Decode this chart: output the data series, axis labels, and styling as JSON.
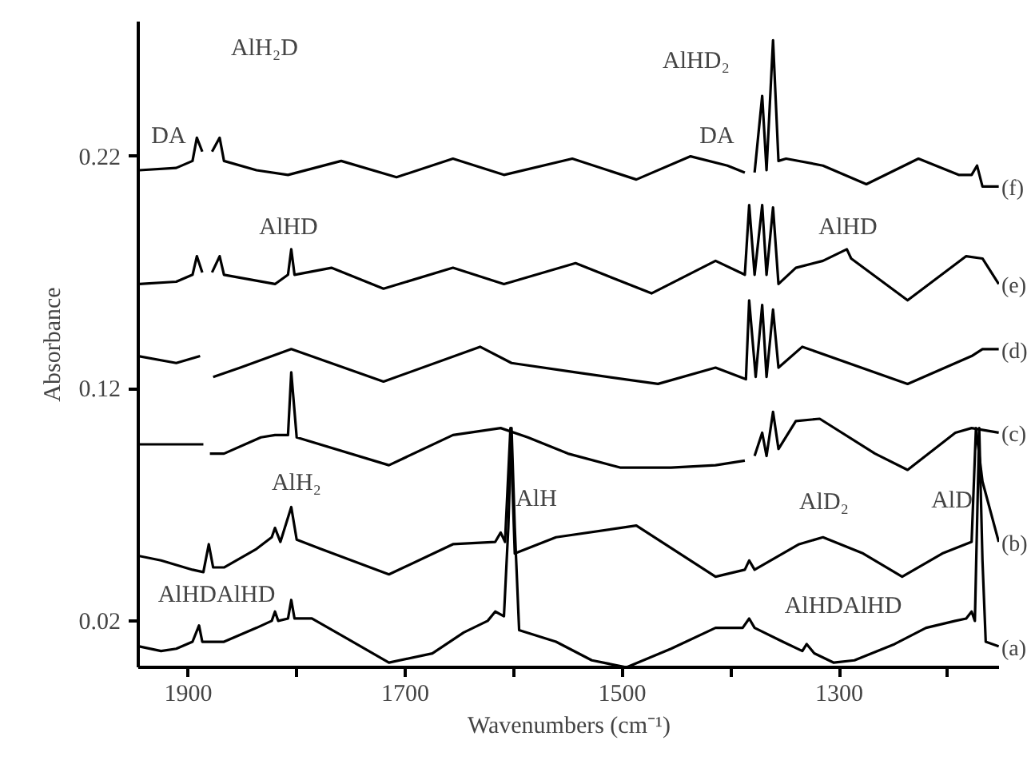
{
  "chart_data": {
    "type": "line",
    "xlabel": "Wavenumbers (cm⁻¹)",
    "ylabel": "Absorbance",
    "xlim": [
      1946,
      1152
    ],
    "ylim": [
      0,
      0.278
    ],
    "xticks": [
      1900,
      {
        "value": 1800,
        "label": null
      },
      1700,
      {
        "value": 1600,
        "label": null
      },
      1500,
      {
        "value": 1400,
        "label": null
      },
      1300,
      {
        "value": 1200,
        "label": null
      }
    ],
    "yticks": [
      0.02,
      0.12,
      0.22
    ],
    "grid": false,
    "line_style": "solid",
    "annotations": [
      "DA",
      "AlH₂D",
      "AlHD",
      "AlHD₂",
      "DA",
      "AlHD",
      "AlH₂",
      "AlH",
      "AlD₂",
      "AlD",
      "AlHDAlHD",
      "AlHDAlHD"
    ],
    "series": [
      {
        "name": "(a)",
        "color": "#000000",
        "x": [
          1945,
          1925,
          1911,
          1896,
          1890,
          1887,
          1867,
          1837,
          1823,
          1820,
          1817,
          1808,
          1805,
          1802,
          1786,
          1756,
          1715,
          1675,
          1646,
          1624,
          1617,
          1609,
          1605,
          1602,
          1599,
          1595,
          1561,
          1528,
          1496,
          1455,
          1414,
          1389,
          1383,
          1378,
          1352,
          1334,
          1330,
          1323,
          1305,
          1286,
          1249,
          1220,
          1193,
          1183,
          1178,
          1175,
          1171,
          1168,
          1165,
          1153
        ],
        "values": [
          0.009,
          0.007,
          0.008,
          0.011,
          0.018,
          0.011,
          0.011,
          0.017,
          0.02,
          0.024,
          0.02,
          0.021,
          0.029,
          0.021,
          0.021,
          0.013,
          0.002,
          0.006,
          0.015,
          0.02,
          0.024,
          0.022,
          0.06,
          0.103,
          0.06,
          0.016,
          0.011,
          0.003,
          0.0,
          0.008,
          0.017,
          0.017,
          0.021,
          0.017,
          0.011,
          0.007,
          0.01,
          0.006,
          0.002,
          0.003,
          0.01,
          0.017,
          0.02,
          0.021,
          0.024,
          0.02,
          0.103,
          0.046,
          0.011,
          0.009
        ]
      },
      {
        "name": "(b)",
        "color": "#000000",
        "x": [
          1946,
          1925,
          1896,
          1886,
          1881,
          1877,
          1867,
          1837,
          1823,
          1820,
          1815,
          1805,
          1800,
          1778,
          1715,
          1656,
          1617,
          1612,
          1608,
          1603,
          1599,
          1561,
          1487,
          1414,
          1387,
          1383,
          1378,
          1337,
          1315,
          1278,
          1242,
          1205,
          1178,
          1174,
          1168,
          1153
        ],
        "values": [
          0.048,
          0.046,
          0.042,
          0.041,
          0.053,
          0.043,
          0.043,
          0.051,
          0.056,
          0.06,
          0.054,
          0.069,
          0.055,
          0.051,
          0.04,
          0.053,
          0.054,
          0.058,
          0.054,
          0.103,
          0.049,
          0.056,
          0.061,
          0.039,
          0.042,
          0.046,
          0.042,
          0.053,
          0.056,
          0.049,
          0.039,
          0.049,
          0.054,
          0.103,
          0.08,
          0.054
        ]
      },
      {
        "name": "(c)",
        "color": "#000000",
        "x": [
          1946,
          1911,
          1886,
          1883,
          1880,
          1867,
          1833,
          1820,
          1808,
          1805,
          1800,
          1715,
          1656,
          1612,
          1587,
          1550,
          1502,
          1455,
          1414,
          1387,
          1383,
          1378,
          1371,
          1367,
          1361,
          1356,
          1340,
          1318,
          1267,
          1237,
          1193,
          1178,
          1153
        ],
        "values": [
          0.096,
          0.096,
          0.096,
          null,
          0.092,
          0.092,
          0.099,
          0.1,
          0.1,
          0.127,
          0.099,
          0.087,
          0.1,
          0.103,
          0.099,
          0.092,
          0.086,
          0.086,
          0.087,
          0.089,
          null,
          0.091,
          0.101,
          0.091,
          0.11,
          0.094,
          0.106,
          0.107,
          0.092,
          0.085,
          0.101,
          0.103,
          0.101
        ]
      },
      {
        "name": "(d)",
        "color": "#000000",
        "x": [
          1946,
          1911,
          1889,
          1883,
          1877,
          1852,
          1805,
          1720,
          1631,
          1602,
          1543,
          1467,
          1414,
          1386,
          1383,
          1377,
          1371,
          1367,
          1361,
          1356,
          1334,
          1237,
          1178,
          1168,
          1153
        ],
        "values": [
          0.134,
          0.131,
          0.134,
          null,
          0.125,
          0.129,
          0.137,
          0.123,
          0.138,
          0.131,
          0.127,
          0.122,
          0.129,
          0.124,
          0.158,
          0.125,
          0.156,
          0.125,
          0.154,
          0.129,
          0.138,
          0.122,
          0.134,
          0.137,
          0.137
        ]
      },
      {
        "name": "(e)",
        "color": "#000000",
        "x": [
          1945,
          1911,
          1896,
          1892,
          1887,
          1883,
          1878,
          1871,
          1867,
          1820,
          1808,
          1805,
          1802,
          1768,
          1720,
          1656,
          1609,
          1543,
          1473,
          1414,
          1387,
          1383,
          1378,
          1371,
          1367,
          1361,
          1356,
          1340,
          1315,
          1293,
          1289,
          1237,
          1183,
          1168,
          1153
        ],
        "values": [
          0.165,
          0.166,
          0.169,
          0.177,
          0.17,
          null,
          0.17,
          0.177,
          0.169,
          0.165,
          0.169,
          0.18,
          0.169,
          0.172,
          0.163,
          0.172,
          0.165,
          0.174,
          0.161,
          0.175,
          0.169,
          0.199,
          0.169,
          0.199,
          0.169,
          0.198,
          0.165,
          0.172,
          0.175,
          0.18,
          0.176,
          0.158,
          0.177,
          0.176,
          0.165
        ]
      },
      {
        "name": "(f)",
        "color": "#000000",
        "x": [
          1945,
          1911,
          1896,
          1892,
          1887,
          1883,
          1878,
          1871,
          1867,
          1837,
          1808,
          1759,
          1708,
          1656,
          1609,
          1546,
          1487,
          1437,
          1403,
          1387,
          1383,
          1378,
          1371,
          1367,
          1361,
          1356,
          1349,
          1315,
          1275,
          1227,
          1190,
          1178,
          1173,
          1168,
          1153
        ],
        "values": [
          0.214,
          0.215,
          0.218,
          0.228,
          0.222,
          null,
          0.222,
          0.228,
          0.218,
          0.214,
          0.212,
          0.218,
          0.211,
          0.219,
          0.212,
          0.219,
          0.21,
          0.22,
          0.216,
          0.213,
          null,
          0.213,
          0.246,
          0.214,
          0.27,
          0.218,
          0.219,
          0.216,
          0.208,
          0.219,
          0.212,
          0.212,
          0.216,
          0.207,
          0.207
        ]
      }
    ]
  }
}
